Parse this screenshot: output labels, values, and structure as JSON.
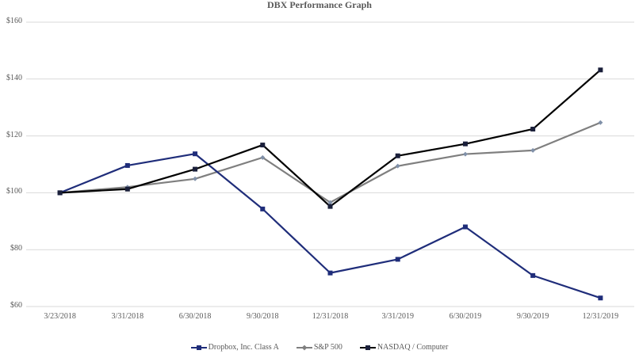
{
  "title": "DBX Performance Graph",
  "yaxis": {
    "ticks": [
      "$160",
      "$140",
      "$120",
      "$100",
      "$80",
      "$60"
    ]
  },
  "xaxis": {
    "ticks": [
      "3/23/2018",
      "3/31/2018",
      "6/30/2018",
      "9/30/2018",
      "12/31/2018",
      "3/31/2019",
      "6/30/2019",
      "9/30/2019",
      "12/31/2019"
    ]
  },
  "legend": {
    "items": [
      {
        "label": "Dropbox, Inc. Class A",
        "color": "#1f2d7a"
      },
      {
        "label": "S&P 500",
        "color": "#7f7f7f"
      },
      {
        "label": "NASDAQ / Computer",
        "color": "#000000"
      }
    ]
  },
  "chart_data": {
    "type": "line",
    "title": "DBX Performance Graph",
    "xlabel": "",
    "ylabel": "",
    "categories": [
      "3/23/2018",
      "3/31/2018",
      "6/30/2018",
      "9/30/2018",
      "12/31/2018",
      "3/31/2019",
      "6/30/2019",
      "9/30/2019",
      "12/31/2019"
    ],
    "series": [
      {
        "name": "Dropbox, Inc. Class A",
        "color": "#1f2d7a",
        "marker": "square",
        "values": [
          100,
          109.6,
          113.7,
          94.3,
          71.8,
          76.6,
          88.0,
          70.9,
          63.0
        ]
      },
      {
        "name": "S&P 500",
        "color": "#7f7f7f",
        "marker": "diamond",
        "values": [
          100,
          102.0,
          104.9,
          112.4,
          96.6,
          109.4,
          113.6,
          114.9,
          124.7
        ]
      },
      {
        "name": "NASDAQ / Computer",
        "color": "#000000",
        "marker": "square",
        "values": [
          100,
          101.3,
          108.3,
          116.8,
          95.2,
          113.0,
          117.2,
          122.4,
          143.2
        ]
      }
    ],
    "ylim": [
      60,
      160
    ],
    "ytick_step": 20,
    "ytick_format": "$",
    "grid": true,
    "legend_position": "bottom"
  }
}
